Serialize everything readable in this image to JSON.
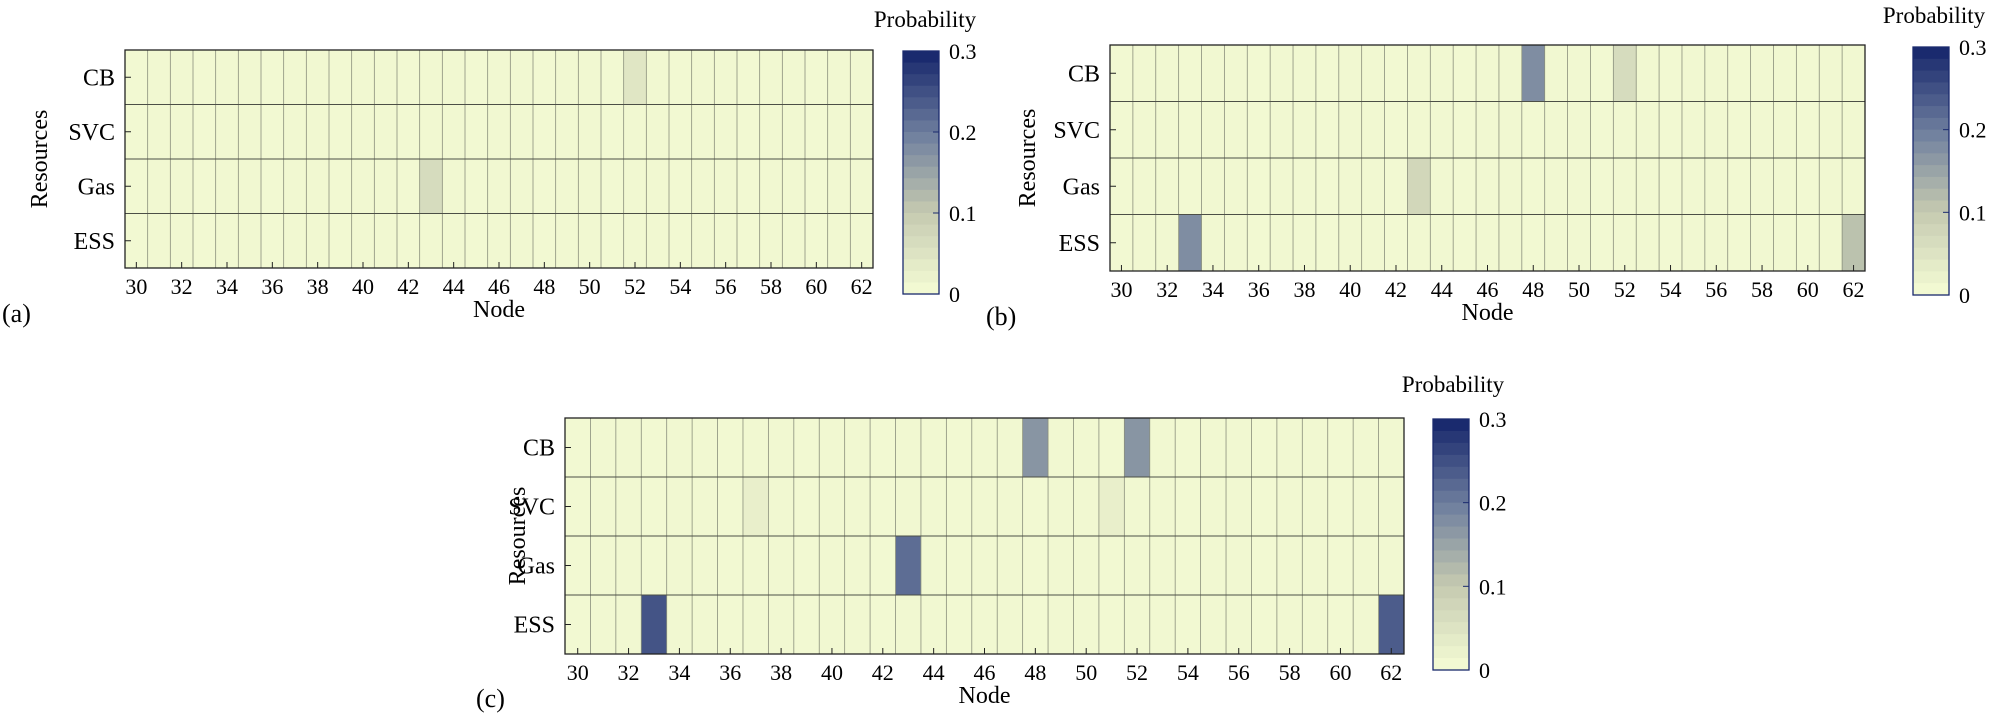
{
  "chart_data": [
    {
      "type": "heatmap",
      "panel_label": "(a)",
      "xlabel": "Node",
      "ylabel": "Resources",
      "x_start": 30,
      "x_end": 62,
      "x_ticks": [
        30,
        32,
        34,
        36,
        38,
        40,
        42,
        44,
        46,
        48,
        50,
        52,
        54,
        56,
        58,
        60,
        62
      ],
      "rows": [
        "CB",
        "SVC",
        "Gas",
        "ESS"
      ],
      "colorbar": {
        "title": "Probability",
        "min": 0,
        "max": 0.3,
        "ticks": [
          "0",
          "0.1",
          "0.2",
          "0.3"
        ]
      },
      "cells": [
        {
          "row": "CB",
          "node": 52,
          "value": 0.04
        },
        {
          "row": "Gas",
          "node": 43,
          "value": 0.06
        }
      ]
    },
    {
      "type": "heatmap",
      "panel_label": "(b)",
      "xlabel": "Node",
      "ylabel": "Resources",
      "x_start": 30,
      "x_end": 62,
      "x_ticks": [
        30,
        32,
        34,
        36,
        38,
        40,
        42,
        44,
        46,
        48,
        50,
        52,
        54,
        56,
        58,
        60,
        62
      ],
      "rows": [
        "CB",
        "SVC",
        "Gas",
        "ESS"
      ],
      "colorbar": {
        "title": "Probability",
        "min": 0,
        "max": 0.3,
        "ticks": [
          "0",
          "0.1",
          "0.2",
          "0.3"
        ]
      },
      "cells": [
        {
          "row": "CB",
          "node": 48,
          "value": 0.18
        },
        {
          "row": "CB",
          "node": 52,
          "value": 0.06
        },
        {
          "row": "Gas",
          "node": 43,
          "value": 0.07
        },
        {
          "row": "ESS",
          "node": 33,
          "value": 0.18
        },
        {
          "row": "ESS",
          "node": 62,
          "value": 0.11
        }
      ]
    },
    {
      "type": "heatmap",
      "panel_label": "(c)",
      "xlabel": "Node",
      "ylabel": "Resources",
      "x_start": 30,
      "x_end": 62,
      "x_ticks": [
        30,
        32,
        34,
        36,
        38,
        40,
        42,
        44,
        46,
        48,
        50,
        52,
        54,
        56,
        58,
        60,
        62
      ],
      "rows": [
        "CB",
        "SVC",
        "Gas",
        "ESS"
      ],
      "colorbar": {
        "title": "Probability",
        "min": 0,
        "max": 0.3,
        "ticks": [
          "0",
          "0.1",
          "0.2",
          "0.3"
        ]
      },
      "cells": [
        {
          "row": "CB",
          "node": 48,
          "value": 0.17
        },
        {
          "row": "CB",
          "node": 52,
          "value": 0.17
        },
        {
          "row": "SVC",
          "node": 37,
          "value": 0.02
        },
        {
          "row": "SVC",
          "node": 51,
          "value": 0.02
        },
        {
          "row": "Gas",
          "node": 43,
          "value": 0.22
        },
        {
          "row": "ESS",
          "node": 33,
          "value": 0.25
        },
        {
          "row": "ESS",
          "node": 62,
          "value": 0.24
        }
      ]
    }
  ]
}
